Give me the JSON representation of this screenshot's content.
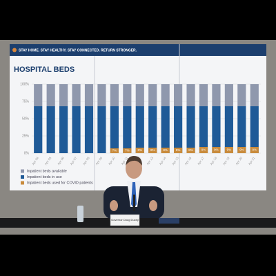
{
  "banner": "STAY HOME. STAY HEALTHY. STAY CONNECTED. RETURN STRONGER.",
  "nameplate": "Governor Doug Ducey",
  "chart_data": {
    "type": "stacked_bar",
    "title": "HOSPITAL BEDS",
    "categories": [
      "Apr 04",
      "Apr 05",
      "Apr 06",
      "Apr 07",
      "Apr 08",
      "Apr 09",
      "Apr 10",
      "Apr 11",
      "Apr 12",
      "Apr 13",
      "Apr 14",
      "Apr 15",
      "Apr 16",
      "Apr 17",
      "Apr 18",
      "Apr 19",
      "Apr 20",
      "Apr 21"
    ],
    "series": [
      {
        "name": "Inpatient beds available",
        "color": "#8f98ad",
        "values": [
          32,
          32,
          32,
          32,
          32,
          32,
          32,
          32,
          32,
          32,
          32,
          32,
          32,
          32,
          32,
          32,
          32,
          32
        ]
      },
      {
        "name": "Inpatient beds in use",
        "color": "#1f5a97",
        "values": [
          68,
          68,
          68,
          68,
          68,
          68,
          68,
          68,
          68,
          68,
          68,
          68,
          68,
          68,
          68,
          68,
          68,
          68
        ]
      },
      {
        "name": "Inpatient beds used for COVID patients",
        "color": "#c98b3c",
        "overlay": true,
        "values": [
          null,
          null,
          null,
          null,
          null,
          null,
          7,
          7,
          8,
          8,
          8,
          8,
          8,
          9,
          9,
          9,
          9,
          9
        ],
        "value_labels": [
          null,
          null,
          null,
          null,
          null,
          null,
          "7%",
          "7%",
          "8%",
          "8%",
          "8%",
          "8%",
          "8%",
          "9%",
          "9%",
          "9%",
          "9%",
          "9%"
        ]
      }
    ],
    "stack_order": [
      1,
      0
    ],
    "ylim": [
      0,
      100
    ],
    "yticks": [
      {
        "value": 0,
        "label": "0%"
      },
      {
        "value": 25,
        "label": "25%"
      },
      {
        "value": 50,
        "label": "50%"
      },
      {
        "value": 75,
        "label": "75%"
      },
      {
        "value": 100,
        "label": "100%"
      }
    ],
    "grid": true
  }
}
